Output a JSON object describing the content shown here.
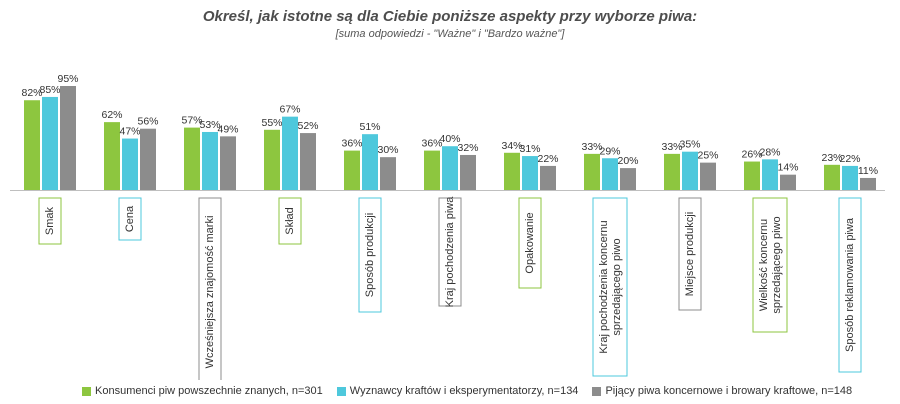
{
  "colors": {
    "series": [
      "#8dc63f",
      "#4ec8dc",
      "#8c8c8c"
    ],
    "box_borders": [
      "#8dc63f",
      "#4ec8dc",
      "#8c8c8c"
    ]
  },
  "chart_data": {
    "type": "bar",
    "title": "Określ, jak istotne są dla Ciebie poniższe aspekty przy wyborze piwa:",
    "subtitle": "[suma odpowiedzi - \"Ważne\" i \"Bardzo ważne\"]",
    "ylim": [
      0,
      100
    ],
    "grid": false,
    "legend_position": "bottom",
    "categories": [
      {
        "lines": [
          "Smak"
        ]
      },
      {
        "lines": [
          "Cena"
        ]
      },
      {
        "lines": [
          "Wcześniejsza znajomość marki"
        ]
      },
      {
        "lines": [
          "Skład"
        ]
      },
      {
        "lines": [
          "Sposób produkcji"
        ]
      },
      {
        "lines": [
          "Kraj pochodzenia piwa"
        ]
      },
      {
        "lines": [
          "Opakowanie"
        ]
      },
      {
        "lines": [
          "Kraj pochodzenia koncernu",
          "sprzedającego piwo"
        ]
      },
      {
        "lines": [
          "Miejsce produkcji"
        ]
      },
      {
        "lines": [
          "Wielkość koncernu",
          "sprzedającego piwo"
        ]
      },
      {
        "lines": [
          "Sposób reklamowania piwa"
        ]
      }
    ],
    "series": [
      {
        "name": "Konsumenci piw powszechnie znanych, n=301",
        "values": [
          82,
          62,
          57,
          55,
          36,
          36,
          34,
          33,
          33,
          26,
          23
        ]
      },
      {
        "name": "Wyznawcy kraftów i eksperymentatorzy, n=134",
        "values": [
          85,
          47,
          53,
          67,
          51,
          40,
          31,
          29,
          35,
          28,
          22
        ]
      },
      {
        "name": "Pijący piwa koncernowe i browary kraftowe, n=148",
        "values": [
          95,
          56,
          49,
          52,
          30,
          32,
          22,
          20,
          25,
          14,
          11
        ]
      }
    ],
    "value_suffix": "%"
  }
}
